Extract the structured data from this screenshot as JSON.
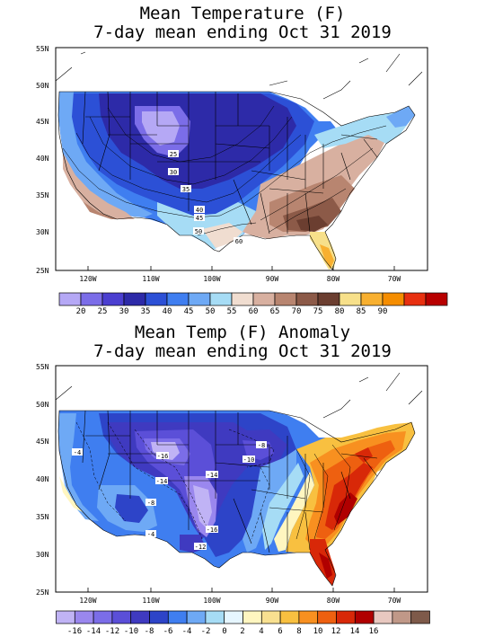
{
  "panels": [
    {
      "title_line1": "Mean Temperature (F)",
      "title_line2": "7-day mean ending Oct 31 2019",
      "lat_labels": [
        "55N",
        "50N",
        "45N",
        "40N",
        "35N",
        "30N",
        "25N"
      ],
      "lon_labels": [
        "120W",
        "110W",
        "100W",
        "90W",
        "80W",
        "70W"
      ],
      "contour_labels": [
        "25",
        "30",
        "35",
        "40",
        "45",
        "50",
        "60"
      ],
      "colorbar": {
        "colors": [
          "#b5a8f5",
          "#7b6de8",
          "#4b3fd0",
          "#2d2aa8",
          "#2c50d6",
          "#3f7ef0",
          "#6ea9f5",
          "#a6dcf5",
          "#f0ddd0",
          "#d8b0a0",
          "#b88570",
          "#8c5a48",
          "#6b3e30",
          "#f7e08a",
          "#f8b030",
          "#f58d00",
          "#e83010",
          "#b80000"
        ],
        "ticks": [
          "20",
          "25",
          "30",
          "35",
          "40",
          "45",
          "50",
          "55",
          "60",
          "65",
          "70",
          "75",
          "80",
          "85",
          "90"
        ]
      }
    },
    {
      "title_line1": "Mean Temp (F) Anomaly",
      "title_line2": "7-day mean ending Oct 31 2019",
      "lat_labels": [
        "55N",
        "50N",
        "45N",
        "40N",
        "35N",
        "30N",
        "25N"
      ],
      "lon_labels": [
        "120W",
        "110W",
        "100W",
        "90W",
        "80W",
        "70W"
      ],
      "contour_labels": [
        "-4",
        "-16",
        "-14",
        "-14",
        "-10",
        "-8",
        "-8",
        "-4",
        "-16",
        "-12"
      ],
      "colorbar": {
        "colors": [
          "#c0b3f5",
          "#9a87ee",
          "#7b6de8",
          "#5b4fd8",
          "#3f3ac0",
          "#2d44c8",
          "#3f7ef0",
          "#6ea9f5",
          "#a6dcf5",
          "#e6f6ff",
          "#fff6c0",
          "#f8e090",
          "#f8c040",
          "#f89020",
          "#ee6010",
          "#d82808",
          "#b00000",
          "#e8c8c0",
          "#c09888",
          "#7e5a4a"
        ],
        "ticks": [
          "-16",
          "-14",
          "-12",
          "-10",
          "-8",
          "-6",
          "-4",
          "-2",
          "0",
          "2",
          "4",
          "6",
          "8",
          "10",
          "12",
          "14",
          "16"
        ]
      }
    }
  ]
}
